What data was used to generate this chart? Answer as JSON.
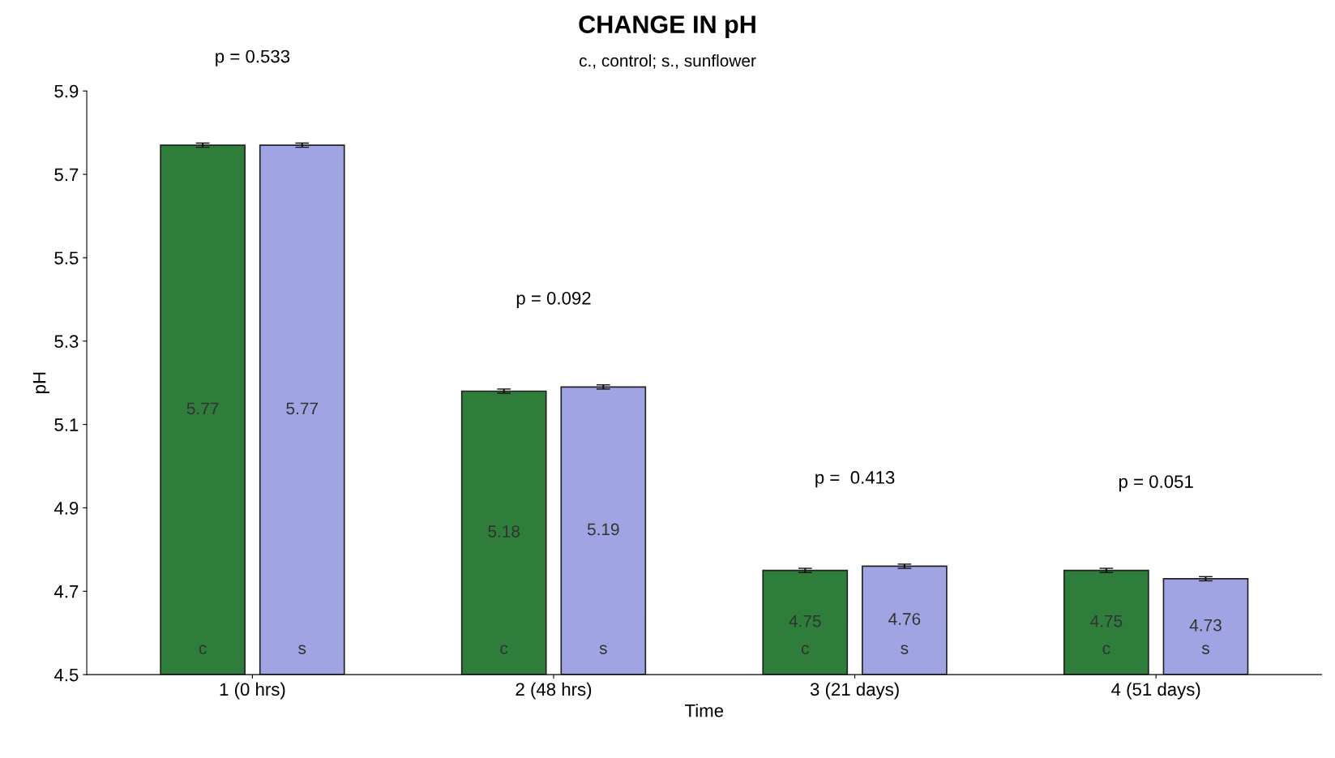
{
  "chart_data": {
    "type": "bar",
    "title": "CHANGE IN pH",
    "subtitle": "c., control; s., sunflower",
    "xlabel": "Time",
    "ylabel": "pH",
    "categories": [
      "1 (0 hrs)",
      "2 (48 hrs)",
      "3 (21 days)",
      "4 (51 days)"
    ],
    "series": [
      {
        "name": "c",
        "color": "#2f7d3b",
        "values": [
          5.77,
          5.18,
          4.75,
          4.75
        ],
        "errors": [
          0.005,
          0.005,
          0.005,
          0.005
        ]
      },
      {
        "name": "s",
        "color": "#a0a4e2",
        "values": [
          5.77,
          5.19,
          4.76,
          4.73
        ],
        "errors": [
          0.005,
          0.005,
          0.005,
          0.005
        ]
      }
    ],
    "ylim": [
      4.5,
      5.9
    ],
    "yticks": [
      4.5,
      4.7,
      4.9,
      5.1,
      5.3,
      5.5,
      5.7,
      5.9
    ],
    "data_labels": true,
    "grid": false,
    "legend": false,
    "annotations": [
      "p = 0.533",
      "p = 0.092",
      "p =  0.413",
      "p = 0.051"
    ]
  }
}
